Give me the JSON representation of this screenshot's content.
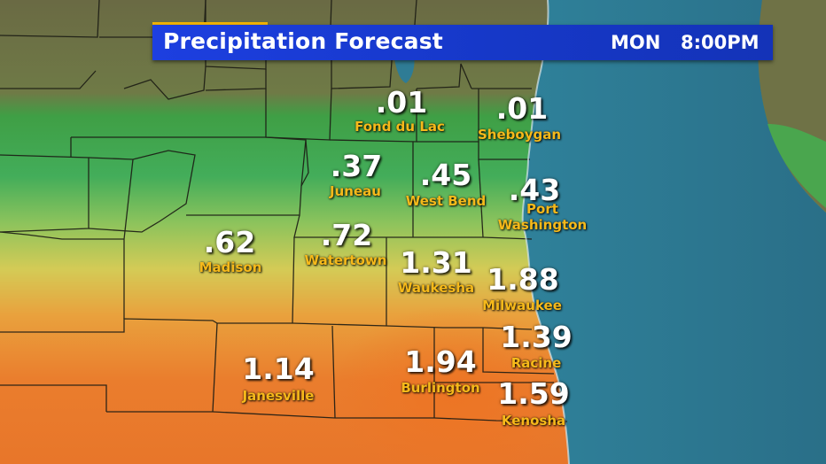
{
  "header": {
    "title": "Precipitation Forecast",
    "day": "MON",
    "time": "8:00PM",
    "accent_color": "#f4b400",
    "banner_color": "#1a3ad8"
  },
  "map": {
    "water_color": "#2f7c95",
    "land_dry_color": "#6b6a45",
    "precip_low_color": "#3fae4e",
    "precip_mid_color": "#d9c94a",
    "precip_high_color": "#e8782a"
  },
  "locations": [
    {
      "id": "fond-du-lac",
      "value": ".01",
      "name": "Fond du Lac"
    },
    {
      "id": "sheboygan",
      "value": ".01",
      "name": "Sheboygan"
    },
    {
      "id": "juneau",
      "value": ".37",
      "name": "Juneau"
    },
    {
      "id": "west-bend",
      "value": ".45",
      "name": "West Bend"
    },
    {
      "id": "port-washington",
      "value": ".43",
      "name_line1": "Port",
      "name_line2": "Washington"
    },
    {
      "id": "madison",
      "value": ".62",
      "name": "Madison"
    },
    {
      "id": "watertown",
      "value": ".72",
      "name": "Watertown"
    },
    {
      "id": "waukesha",
      "value": "1.31",
      "name": "Waukesha"
    },
    {
      "id": "milwaukee",
      "value": "1.88",
      "name": "Milwaukee"
    },
    {
      "id": "racine",
      "value": "1.39",
      "name": "Racine"
    },
    {
      "id": "janesville",
      "value": "1.14",
      "name": "Janesville"
    },
    {
      "id": "burlington",
      "value": "1.94",
      "name": "Burlington"
    },
    {
      "id": "kenosha",
      "value": "1.59",
      "name": "Kenosha"
    }
  ]
}
